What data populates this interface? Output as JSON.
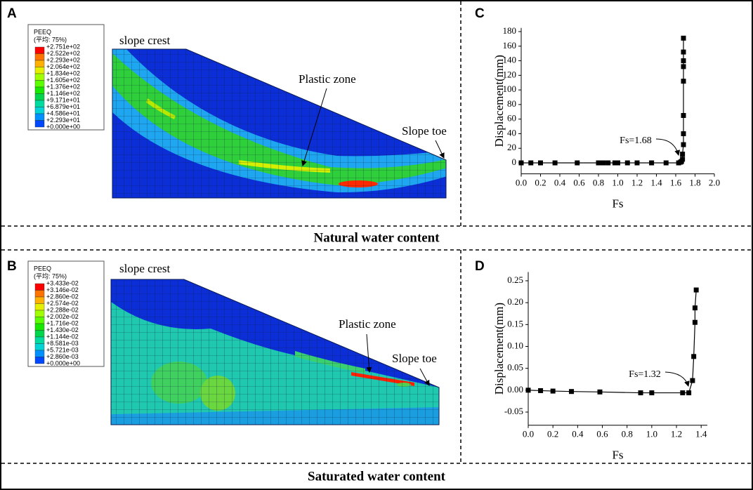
{
  "fe_panels": [
    {
      "label": "A",
      "legend_title": "PEEQ",
      "legend_subtitle": "(平均: 75%)",
      "legend_labels": [
        "+2.751e+02",
        "+2.522e+02",
        "+2.293e+02",
        "+2.064e+02",
        "+1.834e+02",
        "+1.605e+02",
        "+1.376e+02",
        "+1.146e+02",
        "+9.171e+01",
        "+6.879e+01",
        "+4.586e+01",
        "+2.293e+01",
        "+0.000e+00"
      ],
      "legend_colors": [
        "#ff0000",
        "#ff7300",
        "#ffb000",
        "#e5f000",
        "#a0ff00",
        "#5cff00",
        "#17e800",
        "#00d54b",
        "#00dca0",
        "#00d4d4",
        "#0090ff",
        "#0048ff"
      ],
      "texts": [
        "slope crest",
        "Plastic zone",
        "Slope toe"
      ]
    },
    {
      "label": "B",
      "legend_title": "PEEQ",
      "legend_subtitle": "(平均: 75%)",
      "legend_labels": [
        "+3.433e-02",
        "+3.146e-02",
        "+2.860e-02",
        "+2.574e-02",
        "+2.288e-02",
        "+2.002e-02",
        "+1.716e-02",
        "+1.430e-02",
        "+1.144e-02",
        "+8.581e-03",
        "+5.721e-03",
        "+2.860e-03",
        "+0.000e+00"
      ],
      "legend_colors": [
        "#ff0000",
        "#ff7300",
        "#ffb000",
        "#e5f000",
        "#a0ff00",
        "#5cff00",
        "#17e800",
        "#00d54b",
        "#00dca0",
        "#00d4d4",
        "#0090ff",
        "#0048ff"
      ],
      "texts": [
        "slope crest",
        "Plastic zone",
        "Slope toe"
      ]
    }
  ],
  "sections": [
    "Natural water content",
    "Saturated water content"
  ],
  "chart_data": [
    {
      "type": "line",
      "panel_label": "C",
      "xlabel": "Fs",
      "ylabel": "Displacement(mm)",
      "marker": "square",
      "color": "#000000",
      "x": [
        0,
        0.1,
        0.2,
        0.35,
        0.58,
        0.8,
        0.85,
        0.9,
        0.97,
        1.0,
        1.1,
        1.2,
        1.35,
        1.5,
        1.63,
        1.65,
        1.66,
        1.67,
        1.67,
        1.68,
        1.68,
        1.68,
        1.68,
        1.68,
        1.68,
        1.68,
        1.68
      ],
      "values": [
        0,
        0,
        0,
        0,
        0,
        0,
        0,
        0,
        0,
        0,
        0,
        0,
        0,
        0,
        0,
        1,
        2,
        5,
        12,
        25,
        40,
        65,
        112,
        132,
        140,
        152,
        171
      ],
      "xlim": [
        0,
        2
      ],
      "ylim": [
        -15,
        185
      ],
      "xticks": [
        {
          "value": 0,
          "label": "0.0"
        },
        0.2,
        0.4,
        0.6,
        0.8,
        {
          "value": 1,
          "label": "1.0"
        },
        1.2,
        1.4,
        1.6,
        1.8,
        {
          "value": 2,
          "label": "2.0"
        }
      ],
      "yticks": [
        0,
        20,
        40,
        60,
        80,
        100,
        120,
        140,
        160,
        180
      ],
      "annotation": "Fs=1.68"
    },
    {
      "type": "line",
      "panel_label": "D",
      "xlabel": "Fs",
      "ylabel": "Displacement(mm)",
      "marker": "square",
      "color": "#000000",
      "x": [
        0,
        0.1,
        0.2,
        0.35,
        0.58,
        0.91,
        1.0,
        1.25,
        1.3,
        1.33,
        1.34,
        1.35,
        1.35,
        1.36
      ],
      "values": [
        0,
        -0.001,
        -0.002,
        -0.003,
        -0.004,
        -0.006,
        -0.006,
        -0.006,
        -0.006,
        0.022,
        0.077,
        0.155,
        0.188,
        0.229
      ],
      "xlim": [
        0,
        1.45
      ],
      "ylim": [
        -0.08,
        0.27
      ],
      "xticks": [
        {
          "value": 0,
          "label": "0.0"
        },
        0.2,
        0.4,
        0.6,
        0.8,
        {
          "value": 1,
          "label": "1.0"
        },
        1.2,
        1.4
      ],
      "yticks": [
        -0.05,
        {
          "value": 0,
          "label": "0.00"
        },
        0.05,
        {
          "value": 0.1,
          "label": "0.10"
        },
        0.15,
        {
          "value": 0.2,
          "label": "0.20"
        },
        0.25
      ],
      "annotation": "Fs=1.32"
    }
  ]
}
